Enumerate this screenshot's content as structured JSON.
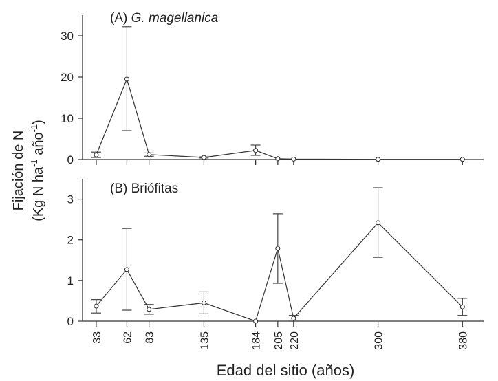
{
  "figure": {
    "ylabel_line1": "Fijación de N",
    "ylabel_line2_prefix": "(Kg N ha",
    "ylabel_sup1": "-1",
    "ylabel_line2_mid": " año",
    "ylabel_sup2": "-1",
    "ylabel_line2_suffix": ")",
    "xlabel": "Edad del sitio (años)"
  },
  "chart_data": [
    {
      "type": "line",
      "panel_label": "(A) ",
      "title_italic": "G. magellanica",
      "ylim": [
        0,
        35
      ],
      "yticks": [
        0,
        10,
        20,
        30
      ],
      "x": [
        33,
        62,
        83,
        135,
        184,
        205,
        220,
        300,
        380
      ],
      "series": [
        {
          "values": [
            1.1,
            19.5,
            1.2,
            0.5,
            2.2,
            0.2,
            0.1,
            0.05,
            0.05
          ],
          "error_bars": [
            [
              0.5,
              1.8
            ],
            [
              7.0,
              32.2
            ],
            [
              0.8,
              1.6
            ],
            [
              0.35,
              0.65
            ],
            [
              1.0,
              3.5
            ],
            [
              null,
              null
            ],
            [
              null,
              null
            ],
            [
              null,
              null
            ],
            [
              null,
              null
            ]
          ]
        }
      ]
    },
    {
      "type": "line",
      "panel_label": "(B) Briófitas",
      "ylim": [
        0,
        3.5
      ],
      "yticks": [
        0,
        1,
        2,
        3
      ],
      "x": [
        33,
        62,
        83,
        135,
        184,
        205,
        220,
        300,
        380
      ],
      "xtick_labels": [
        "33",
        "62",
        "83",
        "135",
        "184",
        "205",
        "220",
        "300",
        "380"
      ],
      "series": [
        {
          "values": [
            0.37,
            1.27,
            0.29,
            0.45,
            0.0,
            1.79,
            0.07,
            2.42,
            0.35
          ],
          "error_bars": [
            [
              0.2,
              0.53
            ],
            [
              0.27,
              2.28
            ],
            [
              0.17,
              0.41
            ],
            [
              0.18,
              0.72
            ],
            [
              null,
              null
            ],
            [
              0.93,
              2.64
            ],
            [
              0.0,
              0.14
            ],
            [
              1.57,
              3.28
            ],
            [
              0.14,
              0.56
            ]
          ]
        }
      ]
    }
  ]
}
